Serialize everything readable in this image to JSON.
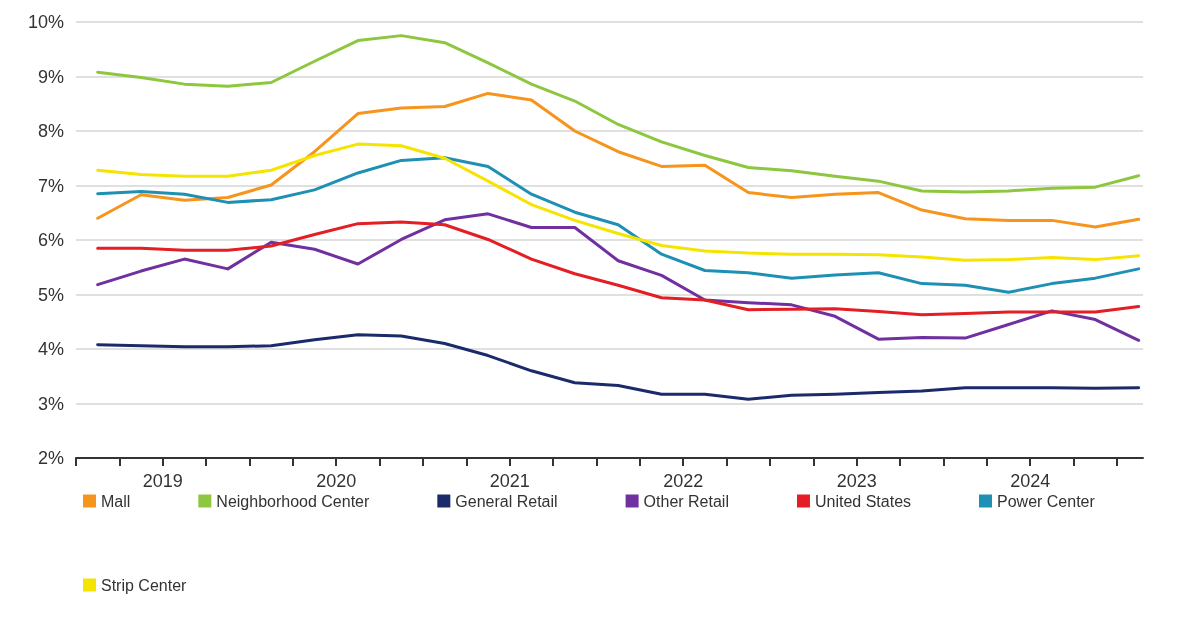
{
  "chart_data": {
    "type": "line",
    "x": [
      2019.125,
      2019.375,
      2019.625,
      2019.875,
      2020.125,
      2020.375,
      2020.625,
      2020.875,
      2021.125,
      2021.375,
      2021.625,
      2021.875,
      2022.125,
      2022.375,
      2022.625,
      2022.875,
      2023.125,
      2023.375,
      2023.625,
      2023.875,
      2024.125,
      2024.375,
      2024.625,
      2024.875,
      2025.125
    ],
    "series": [
      {
        "name": "Mall",
        "color": "#f7941d",
        "values": [
          6.4,
          6.83,
          6.73,
          6.78,
          7.01,
          7.62,
          8.32,
          8.42,
          8.45,
          8.69,
          8.57,
          8.0,
          7.62,
          7.35,
          7.37,
          6.87,
          6.78,
          6.84,
          6.87,
          6.55,
          6.39,
          6.36,
          6.36,
          6.24,
          6.38
        ]
      },
      {
        "name": "Neighborhood Center",
        "color": "#8dc63f",
        "values": [
          9.08,
          8.98,
          8.86,
          8.82,
          8.89,
          9.28,
          9.66,
          9.75,
          9.62,
          9.25,
          8.86,
          8.55,
          8.12,
          7.8,
          7.55,
          7.33,
          7.27,
          7.17,
          7.08,
          6.9,
          6.88,
          6.9,
          6.95,
          6.97,
          7.18
        ]
      },
      {
        "name": "General Retail",
        "color": "#1b2a6b",
        "values": [
          4.08,
          4.06,
          4.04,
          4.04,
          4.06,
          4.17,
          4.26,
          4.24,
          4.1,
          3.88,
          3.6,
          3.38,
          3.33,
          3.17,
          3.17,
          3.08,
          3.15,
          3.17,
          3.2,
          3.23,
          3.29,
          3.29,
          3.29,
          3.28,
          3.29
        ]
      },
      {
        "name": "Other Retail",
        "color": "#7030a0",
        "values": [
          5.18,
          5.43,
          5.65,
          5.47,
          5.96,
          5.83,
          5.56,
          6.01,
          6.37,
          6.48,
          6.23,
          6.23,
          5.62,
          5.35,
          4.9,
          4.85,
          4.81,
          4.6,
          4.18,
          4.21,
          4.2,
          4.45,
          4.7,
          4.54,
          4.16
        ]
      },
      {
        "name": "United States",
        "color": "#e31e24",
        "values": [
          5.85,
          5.85,
          5.81,
          5.81,
          5.89,
          6.1,
          6.3,
          6.33,
          6.28,
          6.01,
          5.65,
          5.38,
          5.17,
          4.94,
          4.9,
          4.72,
          4.73,
          4.74,
          4.69,
          4.63,
          4.65,
          4.68,
          4.68,
          4.68,
          4.78
        ]
      },
      {
        "name": "Power Center",
        "color": "#1e90b4",
        "values": [
          6.85,
          6.89,
          6.84,
          6.69,
          6.74,
          6.92,
          7.23,
          7.46,
          7.51,
          7.35,
          6.84,
          6.51,
          6.28,
          5.74,
          5.44,
          5.4,
          5.3,
          5.36,
          5.4,
          5.2,
          5.17,
          5.04,
          5.2,
          5.3,
          5.47
        ]
      },
      {
        "name": "Strip Center",
        "color": "#f5e400",
        "values": [
          7.28,
          7.2,
          7.17,
          7.17,
          7.28,
          7.55,
          7.76,
          7.73,
          7.5,
          7.08,
          6.65,
          6.36,
          6.12,
          5.9,
          5.8,
          5.76,
          5.74,
          5.74,
          5.73,
          5.69,
          5.63,
          5.64,
          5.68,
          5.64,
          5.71
        ]
      }
    ],
    "xlim": [
      2019,
      2025.15
    ],
    "xticks": [
      {
        "value": 2019,
        "label": null
      },
      {
        "value": 2019.25,
        "label": null
      },
      {
        "value": 2019.5,
        "label": "2019"
      },
      {
        "value": 2019.75,
        "label": null
      },
      {
        "value": 2020,
        "label": null
      },
      {
        "value": 2020.25,
        "label": null
      },
      {
        "value": 2020.5,
        "label": "2020"
      },
      {
        "value": 2020.75,
        "label": null
      },
      {
        "value": 2021,
        "label": null
      },
      {
        "value": 2021.25,
        "label": null
      },
      {
        "value": 2021.5,
        "label": "2021"
      },
      {
        "value": 2021.75,
        "label": null
      },
      {
        "value": 2022,
        "label": null
      },
      {
        "value": 2022.25,
        "label": null
      },
      {
        "value": 2022.5,
        "label": "2022"
      },
      {
        "value": 2022.75,
        "label": null
      },
      {
        "value": 2023,
        "label": null
      },
      {
        "value": 2023.25,
        "label": null
      },
      {
        "value": 2023.5,
        "label": "2023"
      },
      {
        "value": 2023.75,
        "label": null
      },
      {
        "value": 2024,
        "label": null
      },
      {
        "value": 2024.25,
        "label": null
      },
      {
        "value": 2024.5,
        "label": "2024"
      },
      {
        "value": 2024.75,
        "label": null
      },
      {
        "value": 2025,
        "label": null
      }
    ],
    "ylim": [
      2,
      10
    ],
    "yticks": [
      {
        "value": 2,
        "label": "2%"
      },
      {
        "value": 3,
        "label": "3%"
      },
      {
        "value": 4,
        "label": "4%"
      },
      {
        "value": 5,
        "label": "5%"
      },
      {
        "value": 6,
        "label": "6%"
      },
      {
        "value": 7,
        "label": "7%"
      },
      {
        "value": 8,
        "label": "8%"
      },
      {
        "value": 9,
        "label": "9%"
      },
      {
        "value": 10,
        "label": "10%"
      }
    ],
    "grid": "y",
    "legend": "bottom",
    "marker": "none",
    "line_style": "solid"
  }
}
